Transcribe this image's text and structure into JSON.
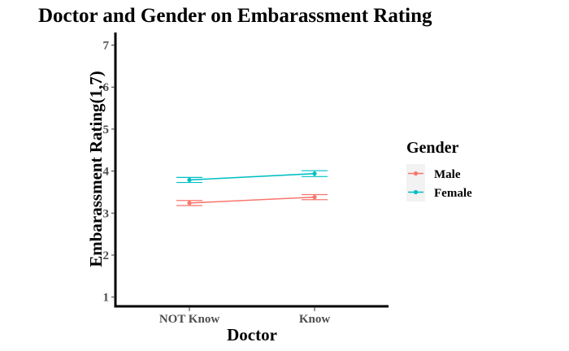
{
  "chart_data": {
    "type": "line",
    "title": "Doctor and Gender on Embarassment Rating",
    "xlabel": "Doctor",
    "ylabel": "Embarassment Rating(1,7)",
    "categories": [
      "NOT Know",
      "Know"
    ],
    "ylim": [
      0.8,
      7.3
    ],
    "yticks": [
      1,
      2,
      3,
      4,
      5,
      6,
      7
    ],
    "grid": false,
    "legend": {
      "title": "Gender",
      "position": "right"
    },
    "series": [
      {
        "name": "Male",
        "color": "#F8766D",
        "values": [
          3.24,
          3.38
        ],
        "errors": [
          0.06,
          0.06
        ]
      },
      {
        "name": "Female",
        "color": "#00BFC4",
        "values": [
          3.79,
          3.94
        ],
        "errors": [
          0.06,
          0.07
        ]
      }
    ]
  }
}
